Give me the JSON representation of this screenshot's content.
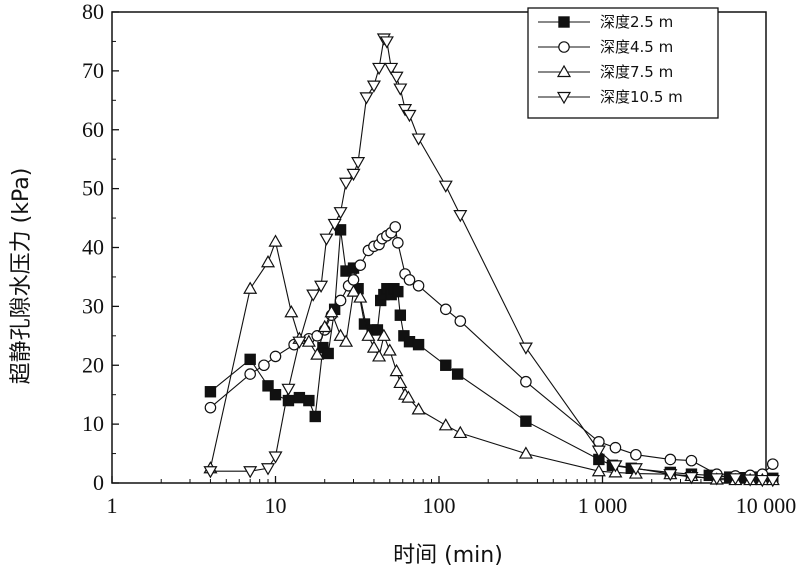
{
  "chart_data": {
    "type": "line",
    "xscale": "log",
    "xlim": [
      1,
      10000
    ],
    "ylim": [
      0,
      80
    ],
    "xlabel": "时间 (min)",
    "ylabel": "超静孔隙水压力 (kPa)",
    "xticks": [
      {
        "value": 1,
        "label": "1"
      },
      {
        "value": 10,
        "label": "10"
      },
      {
        "value": 100,
        "label": "100"
      },
      {
        "value": 1000,
        "label": "1 000"
      },
      {
        "value": 10000,
        "label": "10 000"
      }
    ],
    "yticks": [
      {
        "value": 0,
        "label": "0"
      },
      {
        "value": 10,
        "label": "10"
      },
      {
        "value": 20,
        "label": "20"
      },
      {
        "value": 30,
        "label": "30"
      },
      {
        "value": 40,
        "label": "40"
      },
      {
        "value": 50,
        "label": "50"
      },
      {
        "value": 60,
        "label": "60"
      },
      {
        "value": 70,
        "label": "70"
      },
      {
        "value": 80,
        "label": "80"
      }
    ],
    "legend_position": "top-right",
    "grid": false,
    "series": [
      {
        "name": "深度2.5 m",
        "marker": "square-filled",
        "points": [
          [
            4,
            15.5
          ],
          [
            7,
            21
          ],
          [
            9,
            16.5
          ],
          [
            10,
            15
          ],
          [
            12,
            14
          ],
          [
            14,
            14.5
          ],
          [
            16,
            14
          ],
          [
            17.5,
            11.3
          ],
          [
            19.5,
            23
          ],
          [
            21,
            22
          ],
          [
            23,
            29.5
          ],
          [
            25,
            43
          ],
          [
            27,
            36
          ],
          [
            30,
            36.5
          ],
          [
            32,
            33
          ],
          [
            35,
            27
          ],
          [
            39,
            26
          ],
          [
            42,
            26
          ],
          [
            44,
            31
          ],
          [
            46,
            32
          ],
          [
            48,
            33
          ],
          [
            51,
            32
          ],
          [
            53,
            33
          ],
          [
            56,
            32.5
          ],
          [
            58,
            28.5
          ],
          [
            61,
            25
          ],
          [
            66,
            24
          ],
          [
            75,
            23.5
          ],
          [
            110,
            20
          ],
          [
            130,
            18.5
          ],
          [
            340,
            10.5
          ],
          [
            950,
            4
          ],
          [
            1150,
            3
          ],
          [
            1500,
            2.5
          ],
          [
            2600,
            1.8
          ],
          [
            3500,
            1.5
          ],
          [
            4500,
            1.3
          ],
          [
            6000,
            1.0
          ],
          [
            7500,
            0.9
          ],
          [
            9000,
            1.0
          ],
          [
            11000,
            0.8
          ]
        ]
      },
      {
        "name": "深度4.5 m",
        "marker": "circle-open",
        "points": [
          [
            4,
            12.8
          ],
          [
            7,
            18.5
          ],
          [
            8.5,
            20
          ],
          [
            10,
            21.5
          ],
          [
            13,
            23.5
          ],
          [
            16,
            24.5
          ],
          [
            18,
            25
          ],
          [
            20,
            26
          ],
          [
            22,
            28.5
          ],
          [
            25,
            31
          ],
          [
            28,
            33.5
          ],
          [
            30,
            34.5
          ],
          [
            33,
            37
          ],
          [
            37,
            39.5
          ],
          [
            40,
            40.2
          ],
          [
            43,
            40.5
          ],
          [
            45,
            41.5
          ],
          [
            48,
            42
          ],
          [
            51,
            42.5
          ],
          [
            54,
            43.5
          ],
          [
            56,
            40.8
          ],
          [
            62,
            35.5
          ],
          [
            66,
            34.5
          ],
          [
            75,
            33.5
          ],
          [
            110,
            29.5
          ],
          [
            135,
            27.5
          ],
          [
            340,
            17.2
          ],
          [
            950,
            7
          ],
          [
            1200,
            6
          ],
          [
            1600,
            4.8
          ],
          [
            2600,
            4
          ],
          [
            3500,
            3.8
          ],
          [
            5000,
            1.5
          ],
          [
            6500,
            1.2
          ],
          [
            8000,
            1.3
          ],
          [
            9500,
            1.5
          ],
          [
            11000,
            3.2
          ]
        ]
      },
      {
        "name": "深度7.5 m",
        "marker": "triangle-up-open",
        "points": [
          [
            4,
            2.5
          ],
          [
            7,
            33
          ],
          [
            9,
            37.5
          ],
          [
            10,
            41
          ],
          [
            12.5,
            29
          ],
          [
            14,
            24.5
          ],
          [
            16,
            24
          ],
          [
            18,
            21.8
          ],
          [
            20,
            26.5
          ],
          [
            22,
            29
          ],
          [
            25,
            25
          ],
          [
            27,
            24
          ],
          [
            30,
            32.5
          ],
          [
            33,
            31.5
          ],
          [
            37,
            25
          ],
          [
            40,
            23
          ],
          [
            43,
            21.5
          ],
          [
            46,
            25
          ],
          [
            50,
            22.5
          ],
          [
            55,
            19
          ],
          [
            58,
            17
          ],
          [
            62,
            15
          ],
          [
            65,
            14.5
          ],
          [
            75,
            12.5
          ],
          [
            110,
            9.8
          ],
          [
            135,
            8.5
          ],
          [
            340,
            5
          ],
          [
            950,
            2
          ],
          [
            1200,
            1.8
          ],
          [
            1600,
            1.6
          ],
          [
            2600,
            1.5
          ],
          [
            3500,
            1.2
          ],
          [
            5000,
            0.6
          ],
          [
            6500,
            0.5
          ],
          [
            8000,
            0.5
          ],
          [
            9500,
            0.5
          ],
          [
            11000,
            0.5
          ]
        ]
      },
      {
        "name": "深度10.5 m",
        "marker": "triangle-down-open",
        "points": [
          [
            4,
            2
          ],
          [
            7,
            2
          ],
          [
            9,
            2.5
          ],
          [
            10,
            4.5
          ],
          [
            12,
            16
          ],
          [
            14,
            24
          ],
          [
            17,
            32
          ],
          [
            19,
            33.5
          ],
          [
            20.5,
            41.5
          ],
          [
            23,
            44
          ],
          [
            25,
            46
          ],
          [
            27,
            51
          ],
          [
            30,
            52.5
          ],
          [
            32,
            54.5
          ],
          [
            36,
            65.5
          ],
          [
            40,
            67.5
          ],
          [
            43,
            70.5
          ],
          [
            46,
            75.5
          ],
          [
            48,
            75
          ],
          [
            51,
            70.5
          ],
          [
            55,
            69
          ],
          [
            58,
            67
          ],
          [
            62,
            63.5
          ],
          [
            66,
            62.5
          ],
          [
            75,
            58.5
          ],
          [
            110,
            50.5
          ],
          [
            135,
            45.5
          ],
          [
            340,
            23
          ],
          [
            950,
            5.5
          ],
          [
            1200,
            3
          ],
          [
            1600,
            2.5
          ],
          [
            2600,
            1.5
          ],
          [
            3500,
            1.0
          ],
          [
            5000,
            0.8
          ],
          [
            6500,
            0.8
          ],
          [
            8000,
            0.6
          ],
          [
            9500,
            0.5
          ],
          [
            11000,
            0.5
          ]
        ]
      }
    ]
  }
}
